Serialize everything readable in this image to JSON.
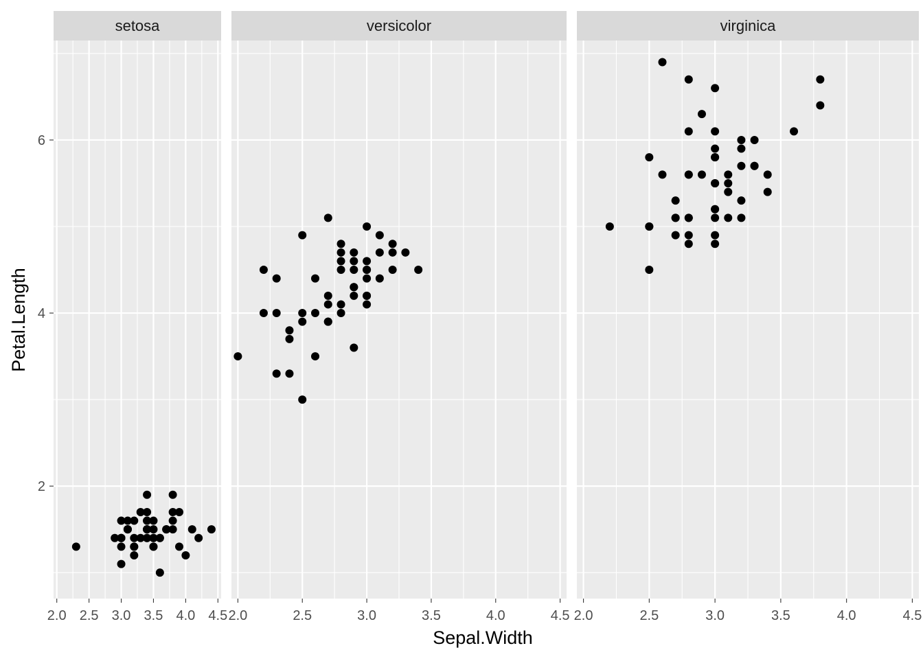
{
  "chart_data": {
    "type": "scatter",
    "xlabel": "Sepal.Width",
    "ylabel": "Petal.Length",
    "xlim": [
      1.95,
      4.55
    ],
    "ylim": [
      0.7,
      7.15
    ],
    "x_ticks": [
      2.0,
      2.5,
      3.0,
      3.5,
      4.0,
      4.5
    ],
    "x_tick_labels": [
      "2.0",
      "2.5",
      "3.0",
      "3.5",
      "4.0",
      "4.5"
    ],
    "y_ticks": [
      2,
      4,
      6
    ],
    "y_tick_labels": [
      "2",
      "4",
      "6"
    ],
    "grid": true,
    "legend": "none",
    "colors": {
      "panel_bg": "#ebebeb",
      "strip_bg": "#d9d9d9",
      "grid": "#ffffff",
      "point": "#000000"
    },
    "panels": [
      {
        "name": "setosa",
        "x": [
          3.5,
          3.0,
          3.2,
          3.1,
          3.6,
          3.9,
          3.4,
          3.4,
          2.9,
          3.1,
          3.7,
          3.4,
          3.0,
          3.0,
          4.0,
          4.4,
          3.9,
          3.5,
          3.8,
          3.8,
          3.4,
          3.7,
          3.6,
          3.3,
          3.4,
          3.0,
          3.4,
          3.5,
          3.4,
          3.2,
          3.1,
          3.4,
          4.1,
          4.2,
          3.1,
          3.2,
          3.5,
          3.6,
          3.0,
          3.4,
          3.5,
          2.3,
          3.2,
          3.5,
          3.8,
          3.0,
          3.8,
          3.2,
          3.7,
          3.3
        ],
        "y": [
          1.4,
          1.4,
          1.3,
          1.5,
          1.4,
          1.7,
          1.4,
          1.5,
          1.4,
          1.5,
          1.5,
          1.6,
          1.4,
          1.1,
          1.2,
          1.5,
          1.3,
          1.4,
          1.7,
          1.5,
          1.7,
          1.5,
          1.0,
          1.7,
          1.9,
          1.6,
          1.6,
          1.5,
          1.4,
          1.6,
          1.6,
          1.5,
          1.5,
          1.4,
          1.5,
          1.2,
          1.3,
          1.4,
          1.3,
          1.5,
          1.3,
          1.3,
          1.3,
          1.6,
          1.9,
          1.4,
          1.6,
          1.4,
          1.5,
          1.4
        ]
      },
      {
        "name": "versicolor",
        "x": [
          3.2,
          3.2,
          3.1,
          2.3,
          2.8,
          2.8,
          3.3,
          2.4,
          2.9,
          2.7,
          2.0,
          3.0,
          2.2,
          2.9,
          2.9,
          3.1,
          3.0,
          2.7,
          2.2,
          2.5,
          3.2,
          2.8,
          2.5,
          2.8,
          2.9,
          3.0,
          2.8,
          3.0,
          2.9,
          2.6,
          2.4,
          2.4,
          2.7,
          2.7,
          3.0,
          3.4,
          3.1,
          2.3,
          3.0,
          2.5,
          2.6,
          3.0,
          2.6,
          2.3,
          2.7,
          3.0,
          2.9,
          2.9,
          2.5,
          2.8
        ],
        "y": [
          4.7,
          4.5,
          4.9,
          4.0,
          4.6,
          4.5,
          4.7,
          3.3,
          4.6,
          3.9,
          3.5,
          4.2,
          4.0,
          4.7,
          3.6,
          4.4,
          4.5,
          4.1,
          4.5,
          3.9,
          4.8,
          4.0,
          4.9,
          4.7,
          4.3,
          4.4,
          4.8,
          5.0,
          4.5,
          3.5,
          3.8,
          3.7,
          3.9,
          5.1,
          4.5,
          4.5,
          4.7,
          4.4,
          4.1,
          4.0,
          4.4,
          4.6,
          4.0,
          3.3,
          4.2,
          4.2,
          4.2,
          4.3,
          3.0,
          4.1
        ]
      },
      {
        "name": "virginica",
        "x": [
          3.3,
          2.7,
          3.0,
          2.9,
          3.0,
          3.0,
          2.5,
          2.9,
          2.5,
          3.6,
          3.2,
          2.7,
          3.0,
          2.5,
          2.8,
          3.2,
          3.0,
          3.8,
          2.6,
          2.2,
          3.2,
          2.8,
          2.8,
          2.7,
          3.3,
          3.2,
          2.8,
          3.0,
          2.8,
          3.0,
          2.8,
          3.8,
          2.8,
          2.8,
          2.6,
          3.0,
          3.4,
          3.1,
          3.0,
          3.1,
          3.1,
          3.1,
          2.7,
          3.2,
          3.3,
          3.0,
          2.5,
          3.0,
          3.4,
          3.0
        ],
        "y": [
          6.0,
          5.1,
          5.9,
          5.6,
          5.8,
          6.6,
          4.5,
          6.3,
          5.8,
          6.1,
          5.1,
          5.3,
          5.5,
          5.0,
          5.1,
          5.3,
          5.5,
          6.7,
          6.9,
          5.0,
          5.7,
          4.9,
          6.7,
          4.9,
          5.7,
          6.0,
          4.8,
          4.9,
          5.6,
          5.8,
          6.1,
          6.4,
          5.6,
          5.1,
          5.6,
          6.1,
          5.6,
          5.5,
          4.8,
          5.4,
          5.6,
          5.1,
          5.1,
          5.9,
          5.7,
          5.2,
          5.0,
          5.2,
          5.4,
          5.1
        ]
      }
    ]
  }
}
